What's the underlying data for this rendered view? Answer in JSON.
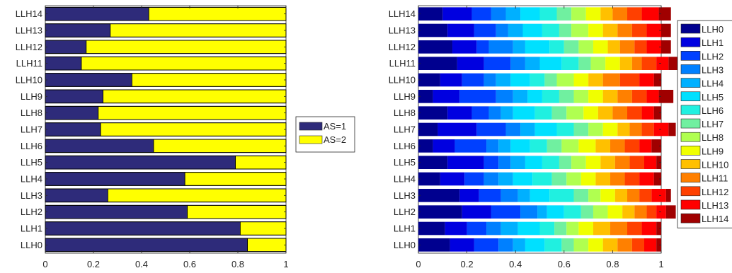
{
  "chart_data": [
    {
      "type": "bar",
      "orientation": "horizontal",
      "stacked": true,
      "normalized": true,
      "categories": [
        "LLH0",
        "LLH1",
        "LLH2",
        "LLH3",
        "LLH4",
        "LLH5",
        "LLH6",
        "LLH7",
        "LLH8",
        "LLH9",
        "LLH10",
        "LLH11",
        "LLH12",
        "LLH13",
        "LLH14"
      ],
      "xlim": [
        0,
        1
      ],
      "xticks": [
        "0",
        "0.2",
        "0.4",
        "0.6",
        "0.8",
        "1"
      ],
      "grid": false,
      "legend_position": "right",
      "series": [
        {
          "name": "AS=1",
          "color": "#2e2b7a",
          "values": [
            0.84,
            0.81,
            0.59,
            0.26,
            0.58,
            0.79,
            0.45,
            0.23,
            0.22,
            0.24,
            0.36,
            0.15,
            0.17,
            0.27,
            0.43
          ]
        },
        {
          "name": "AS=2",
          "color": "#ffff00",
          "values": [
            0.16,
            0.19,
            0.41,
            0.74,
            0.42,
            0.21,
            0.55,
            0.77,
            0.78,
            0.76,
            0.64,
            0.85,
            0.83,
            0.73,
            0.57
          ]
        }
      ]
    },
    {
      "type": "bar",
      "orientation": "horizontal",
      "stacked": true,
      "normalized": true,
      "categories": [
        "LLH0",
        "LLH1",
        "LLH2",
        "LLH3",
        "LLH4",
        "LLH5",
        "LLH6",
        "LLH7",
        "LLH8",
        "LLH9",
        "LLH10",
        "LLH11",
        "LLH12",
        "LLH13",
        "LLH14"
      ],
      "xlim": [
        0,
        1
      ],
      "xticks": [
        "0",
        "0.2",
        "0.4",
        "0.6",
        "0.8",
        "1"
      ],
      "grid": false,
      "legend_position": "right",
      "series": [
        {
          "name": "LLH0",
          "color": "#00008f",
          "values": [
            0.13,
            0.11,
            0.18,
            0.17,
            0.09,
            0.12,
            0.06,
            0.08,
            0.12,
            0.06,
            0.09,
            0.16,
            0.14,
            0.12,
            0.1
          ]
        },
        {
          "name": "LLH1",
          "color": "#0000e0",
          "values": [
            0.1,
            0.09,
            0.12,
            0.08,
            0.1,
            0.15,
            0.09,
            0.16,
            0.1,
            0.11,
            0.09,
            0.11,
            0.1,
            0.11,
            0.12
          ]
        },
        {
          "name": "LLH2",
          "color": "#0040ff",
          "values": [
            0.1,
            0.08,
            0.12,
            0.09,
            0.08,
            0.06,
            0.13,
            0.12,
            0.07,
            0.15,
            0.09,
            0.11,
            0.05,
            0.09,
            0.08
          ]
        },
        {
          "name": "LLH3",
          "color": "#0080ff",
          "values": [
            0.06,
            0.06,
            0.07,
            0.07,
            0.06,
            0.05,
            0.05,
            0.06,
            0.05,
            0.07,
            0.05,
            0.06,
            0.1,
            0.05,
            0.06
          ]
        },
        {
          "name": "LLH4",
          "color": "#00b0ff",
          "values": [
            0.05,
            0.07,
            0.04,
            0.05,
            0.06,
            0.06,
            0.05,
            0.06,
            0.05,
            0.06,
            0.06,
            0.06,
            0.05,
            0.06,
            0.06
          ]
        },
        {
          "name": "LLH5",
          "color": "#00e0ff",
          "values": [
            0.08,
            0.09,
            0.07,
            0.08,
            0.08,
            0.07,
            0.08,
            0.09,
            0.09,
            0.06,
            0.08,
            0.09,
            0.1,
            0.08,
            0.08
          ]
        },
        {
          "name": "LLH6",
          "color": "#20f0e0",
          "values": [
            0.07,
            0.06,
            0.07,
            0.1,
            0.08,
            0.07,
            0.07,
            0.07,
            0.07,
            0.07,
            0.06,
            0.07,
            0.06,
            0.07,
            0.07
          ]
        },
        {
          "name": "LLH7",
          "color": "#70f0a0",
          "values": [
            0.05,
            0.05,
            0.05,
            0.06,
            0.06,
            0.05,
            0.06,
            0.06,
            0.06,
            0.06,
            0.05,
            0.05,
            0.06,
            0.05,
            0.06
          ]
        },
        {
          "name": "LLH8",
          "color": "#b0ff50",
          "values": [
            0.06,
            0.05,
            0.06,
            0.05,
            0.06,
            0.06,
            0.07,
            0.06,
            0.07,
            0.06,
            0.07,
            0.06,
            0.06,
            0.07,
            0.06
          ]
        },
        {
          "name": "LLH9",
          "color": "#f0ff00",
          "values": [
            0.06,
            0.06,
            0.06,
            0.06,
            0.06,
            0.06,
            0.07,
            0.06,
            0.06,
            0.06,
            0.06,
            0.06,
            0.06,
            0.06,
            0.06
          ]
        },
        {
          "name": "LLH10",
          "color": "#ffc000",
          "values": [
            0.06,
            0.07,
            0.05,
            0.05,
            0.06,
            0.06,
            0.06,
            0.05,
            0.06,
            0.06,
            0.06,
            0.05,
            0.05,
            0.06,
            0.05
          ]
        },
        {
          "name": "LLH11",
          "color": "#ff8000",
          "values": [
            0.06,
            0.07,
            0.05,
            0.05,
            0.06,
            0.06,
            0.06,
            0.05,
            0.06,
            0.06,
            0.07,
            0.04,
            0.06,
            0.06,
            0.06
          ]
        },
        {
          "name": "LLH12",
          "color": "#ff4000",
          "values": [
            0.05,
            0.06,
            0.04,
            0.05,
            0.06,
            0.06,
            0.06,
            0.05,
            0.06,
            0.06,
            0.08,
            0.06,
            0.05,
            0.06,
            0.06
          ]
        },
        {
          "name": "LLH13",
          "color": "#ff0000",
          "values": [
            0.05,
            0.06,
            0.04,
            0.06,
            0.06,
            0.05,
            0.05,
            0.06,
            0.05,
            0.05,
            0.06,
            0.05,
            0.06,
            0.06,
            0.07
          ]
        },
        {
          "name": "LLH14",
          "color": "#a00000",
          "values": [
            0.02,
            0.02,
            0.04,
            0.02,
            0.03,
            0.02,
            0.04,
            0.03,
            0.03,
            0.06,
            0.03,
            0.04,
            0.04,
            0.04,
            0.05
          ]
        }
      ]
    }
  ]
}
